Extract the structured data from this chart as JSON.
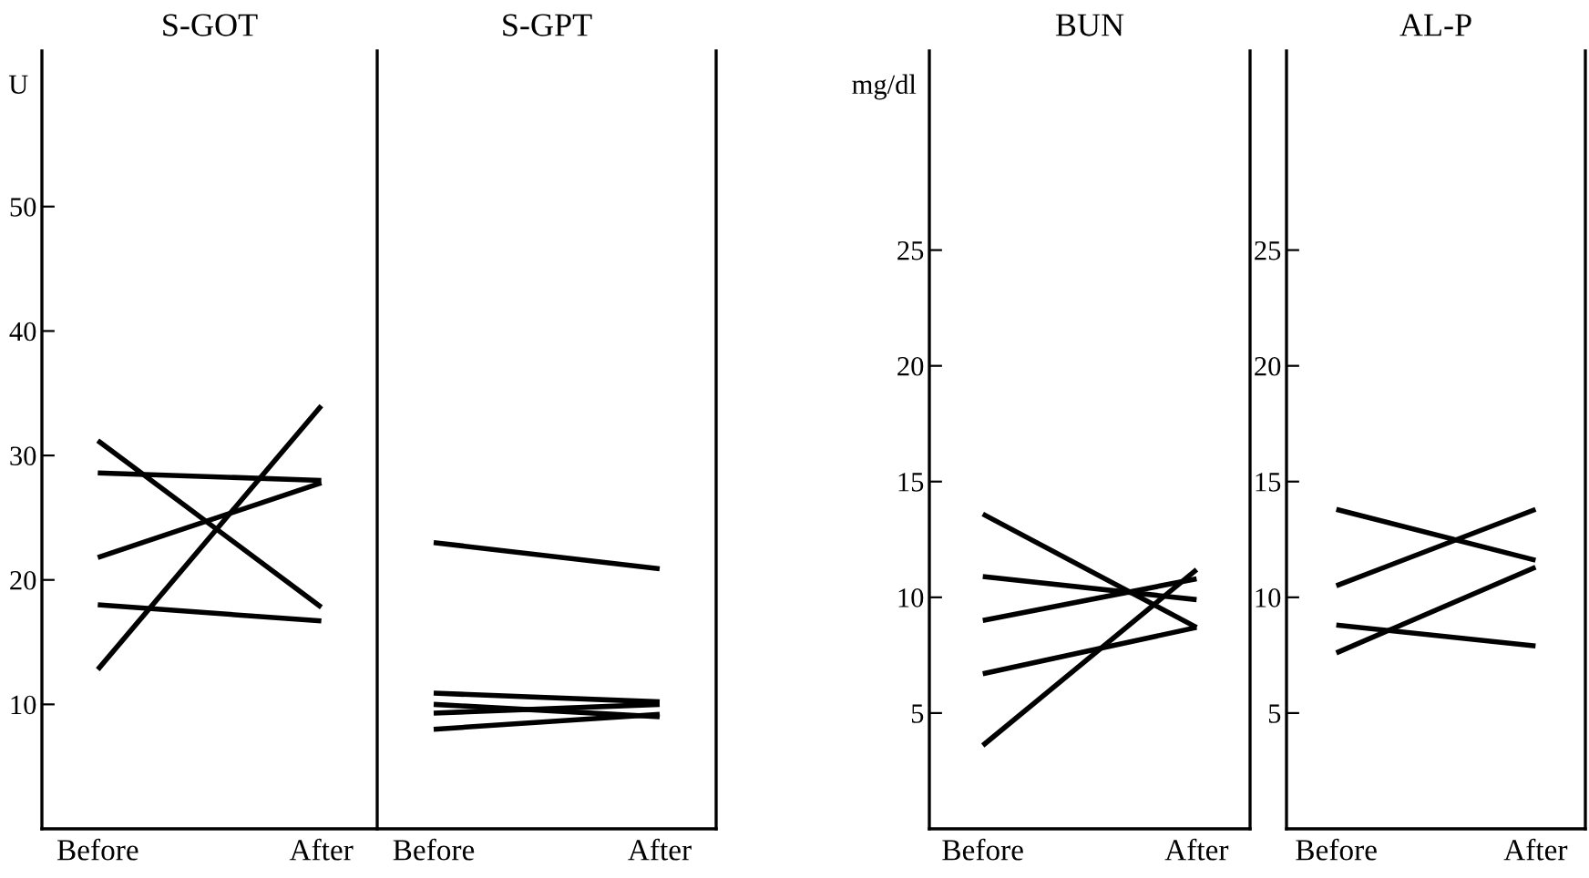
{
  "chart_data": [
    {
      "type": "line",
      "title": "S-GOT",
      "ylabel": "U",
      "categories": [
        "Before",
        "After"
      ],
      "ylim": [
        0,
        62.5
      ],
      "yticks": [
        10,
        20,
        30,
        40,
        50
      ],
      "series": [
        {
          "color": "#000000",
          "values": [
            31.2,
            17.8
          ]
        },
        {
          "color": "#000000",
          "values": [
            28.6,
            28.0
          ]
        },
        {
          "color": "#000000",
          "values": [
            21.8,
            27.8
          ]
        },
        {
          "color": "#000000",
          "values": [
            18.0,
            16.7
          ]
        },
        {
          "color": "#000000",
          "values": [
            12.8,
            34.0
          ]
        }
      ]
    },
    {
      "type": "line",
      "title": "S-GPT",
      "categories": [
        "Before",
        "After"
      ],
      "ylim": [
        0,
        62.5
      ],
      "yticks": [
        10,
        20,
        30,
        40,
        50
      ],
      "tick_labels": "x",
      "series": [
        {
          "color": "#000000",
          "values": [
            23.0,
            20.9
          ]
        },
        {
          "color": "#000000",
          "values": [
            10.9,
            10.2
          ]
        },
        {
          "color": "#000000",
          "values": [
            10.0,
            9.0
          ]
        },
        {
          "color": "#000000",
          "values": [
            9.3,
            10.0
          ]
        },
        {
          "color": "#000000",
          "values": [
            8.0,
            9.2
          ]
        }
      ]
    },
    {
      "type": "line",
      "title": "BUN",
      "ylabel": "mg/dl",
      "categories": [
        "Before",
        "After"
      ],
      "ylim": [
        0,
        33.6
      ],
      "yticks": [
        5,
        10,
        15,
        20,
        25
      ],
      "series": [
        {
          "color": "#000000",
          "values": [
            13.6,
            8.7
          ]
        },
        {
          "color": "#000000",
          "values": [
            10.9,
            9.9
          ]
        },
        {
          "color": "#000000",
          "values": [
            9.0,
            10.8
          ]
        },
        {
          "color": "#000000",
          "values": [
            6.7,
            8.7
          ]
        },
        {
          "color": "#000000",
          "values": [
            3.6,
            11.2
          ]
        }
      ]
    },
    {
      "type": "line",
      "title": "AL-P",
      "categories": [
        "Before",
        "After"
      ],
      "ylim": [
        0,
        33.6
      ],
      "yticks": [
        5,
        10,
        15,
        20,
        25
      ],
      "series": [
        {
          "color": "#000000",
          "values": [
            13.8,
            11.6
          ]
        },
        {
          "color": "#000000",
          "values": [
            10.5,
            13.8
          ]
        },
        {
          "color": "#000000",
          "values": [
            8.8,
            7.9
          ]
        },
        {
          "color": "#000000",
          "values": [
            7.6,
            11.3
          ]
        }
      ]
    }
  ]
}
